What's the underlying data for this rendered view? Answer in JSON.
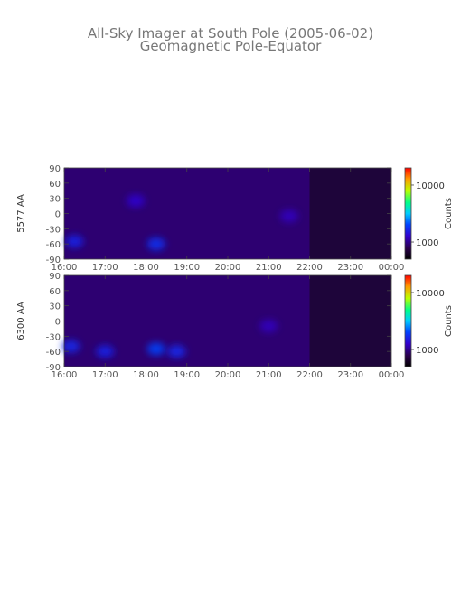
{
  "title": "All-Sky Imager at South Pole (2005-06-02)",
  "subtitle": "Geomagnetic Pole-Equator",
  "chart_data": [
    {
      "type": "heatmap",
      "ylabel": "5577 AA",
      "x_tick_labels": [
        "16:00",
        "17:00",
        "18:00",
        "19:00",
        "20:00",
        "21:00",
        "22:00",
        "23:00",
        "00:00"
      ],
      "y_tick_labels": [
        "90",
        "60",
        "30",
        "0",
        "-30",
        "-60",
        "-90"
      ],
      "x_range": [
        "16:00",
        "00:00"
      ],
      "ylim": [
        -90,
        90
      ],
      "colorbar": {
        "label": "Counts",
        "tick_labels": [
          "10000",
          "1000"
        ],
        "ticks": [
          10000,
          1000
        ],
        "range": [
          500,
          20000
        ],
        "scale": "log"
      },
      "background_counts": 900,
      "dark_period": [
        "22:00",
        "00:00"
      ],
      "features": [
        {
          "time": "16:15",
          "angle": -55,
          "counts": 1600
        },
        {
          "time": "17:45",
          "angle": 25,
          "counts": 1300
        },
        {
          "time": "18:15",
          "angle": -60,
          "counts": 1800
        },
        {
          "time": "21:30",
          "angle": -5,
          "counts": 1200
        }
      ]
    },
    {
      "type": "heatmap",
      "ylabel": "6300 AA",
      "x_tick_labels": [
        "16:00",
        "17:00",
        "18:00",
        "19:00",
        "20:00",
        "21:00",
        "22:00",
        "23:00",
        "00:00"
      ],
      "y_tick_labels": [
        "90",
        "60",
        "30",
        "0",
        "-30",
        "-60",
        "-90"
      ],
      "x_range": [
        "16:00",
        "00:00"
      ],
      "ylim": [
        -90,
        90
      ],
      "colorbar": {
        "label": "Counts",
        "tick_labels": [
          "10000",
          "1000"
        ],
        "ticks": [
          10000,
          1000
        ],
        "range": [
          500,
          20000
        ],
        "scale": "log"
      },
      "background_counts": 900,
      "dark_period": [
        "22:00",
        "00:00"
      ],
      "features": [
        {
          "time": "16:10",
          "angle": -50,
          "counts": 1700
        },
        {
          "time": "17:00",
          "angle": -60,
          "counts": 1600
        },
        {
          "time": "18:15",
          "angle": -55,
          "counts": 2000
        },
        {
          "time": "18:45",
          "angle": -60,
          "counts": 1700
        },
        {
          "time": "21:00",
          "angle": -10,
          "counts": 1200
        }
      ]
    }
  ]
}
